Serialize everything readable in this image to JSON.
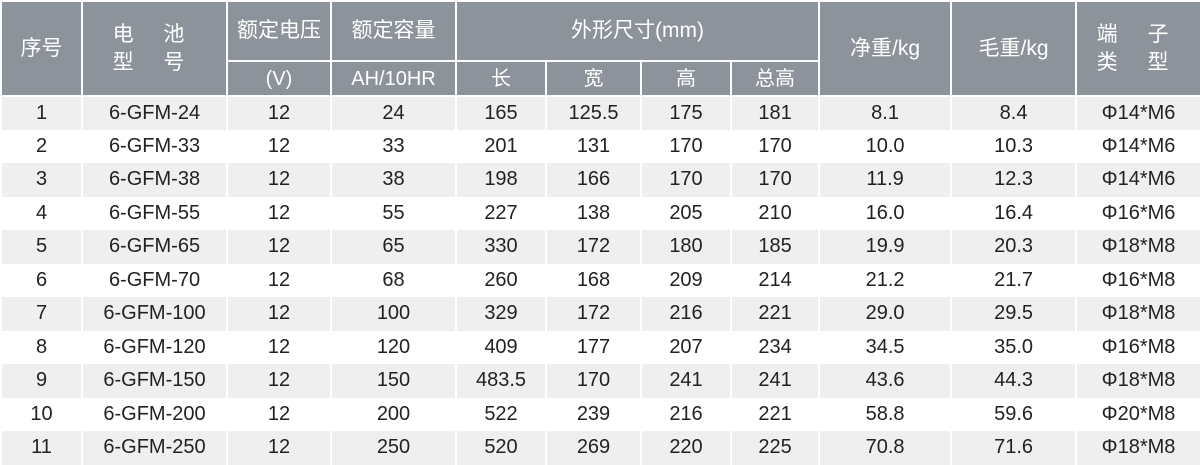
{
  "header": {
    "seq": "序号",
    "model_l1": "电 池",
    "model_l2": "型 号",
    "voltage": "额定电压",
    "voltage_unit": "(V)",
    "capacity": "额定容量",
    "capacity_unit": "AH/10HR",
    "dimensions": "外形尺寸(mm)",
    "length": "长",
    "width": "宽",
    "height": "高",
    "total_height": "总高",
    "net_weight": "净重/kg",
    "gross_weight": "毛重/kg",
    "terminal_l1": "端 子",
    "terminal_l2": "类 型"
  },
  "rows": [
    [
      "1",
      "6-GFM-24",
      "12",
      "24",
      "165",
      "125.5",
      "175",
      "181",
      "8.1",
      "8.4",
      "Φ14*M6"
    ],
    [
      "2",
      "6-GFM-33",
      "12",
      "33",
      "201",
      "131",
      "170",
      "170",
      "10.0",
      "10.3",
      "Φ14*M6"
    ],
    [
      "3",
      "6-GFM-38",
      "12",
      "38",
      "198",
      "166",
      "170",
      "170",
      "11.9",
      "12.3",
      "Φ14*M6"
    ],
    [
      "4",
      "6-GFM-55",
      "12",
      "55",
      "227",
      "138",
      "205",
      "210",
      "16.0",
      "16.4",
      "Φ16*M6"
    ],
    [
      "5",
      "6-GFM-65",
      "12",
      "65",
      "330",
      "172",
      "180",
      "185",
      "19.9",
      "20.3",
      "Φ18*M8"
    ],
    [
      "6",
      "6-GFM-70",
      "12",
      "68",
      "260",
      "168",
      "209",
      "214",
      "21.2",
      "21.7",
      "Φ16*M8"
    ],
    [
      "7",
      "6-GFM-100",
      "12",
      "100",
      "329",
      "172",
      "216",
      "221",
      "29.0",
      "29.5",
      "Φ18*M8"
    ],
    [
      "8",
      "6-GFM-120",
      "12",
      "120",
      "409",
      "177",
      "207",
      "234",
      "34.5",
      "35.0",
      "Φ16*M8"
    ],
    [
      "9",
      "6-GFM-150",
      "12",
      "150",
      "483.5",
      "170",
      "241",
      "241",
      "43.6",
      "44.3",
      "Φ18*M8"
    ],
    [
      "10",
      "6-GFM-200",
      "12",
      "200",
      "522",
      "239",
      "216",
      "221",
      "58.8",
      "59.6",
      "Φ20*M8"
    ],
    [
      "11",
      "6-GFM-250",
      "12",
      "250",
      "520",
      "269",
      "220",
      "225",
      "70.8",
      "71.6",
      "Φ18*M8"
    ]
  ],
  "colors": {
    "header_bg": "#8d939a",
    "stripe": "#efefef"
  }
}
